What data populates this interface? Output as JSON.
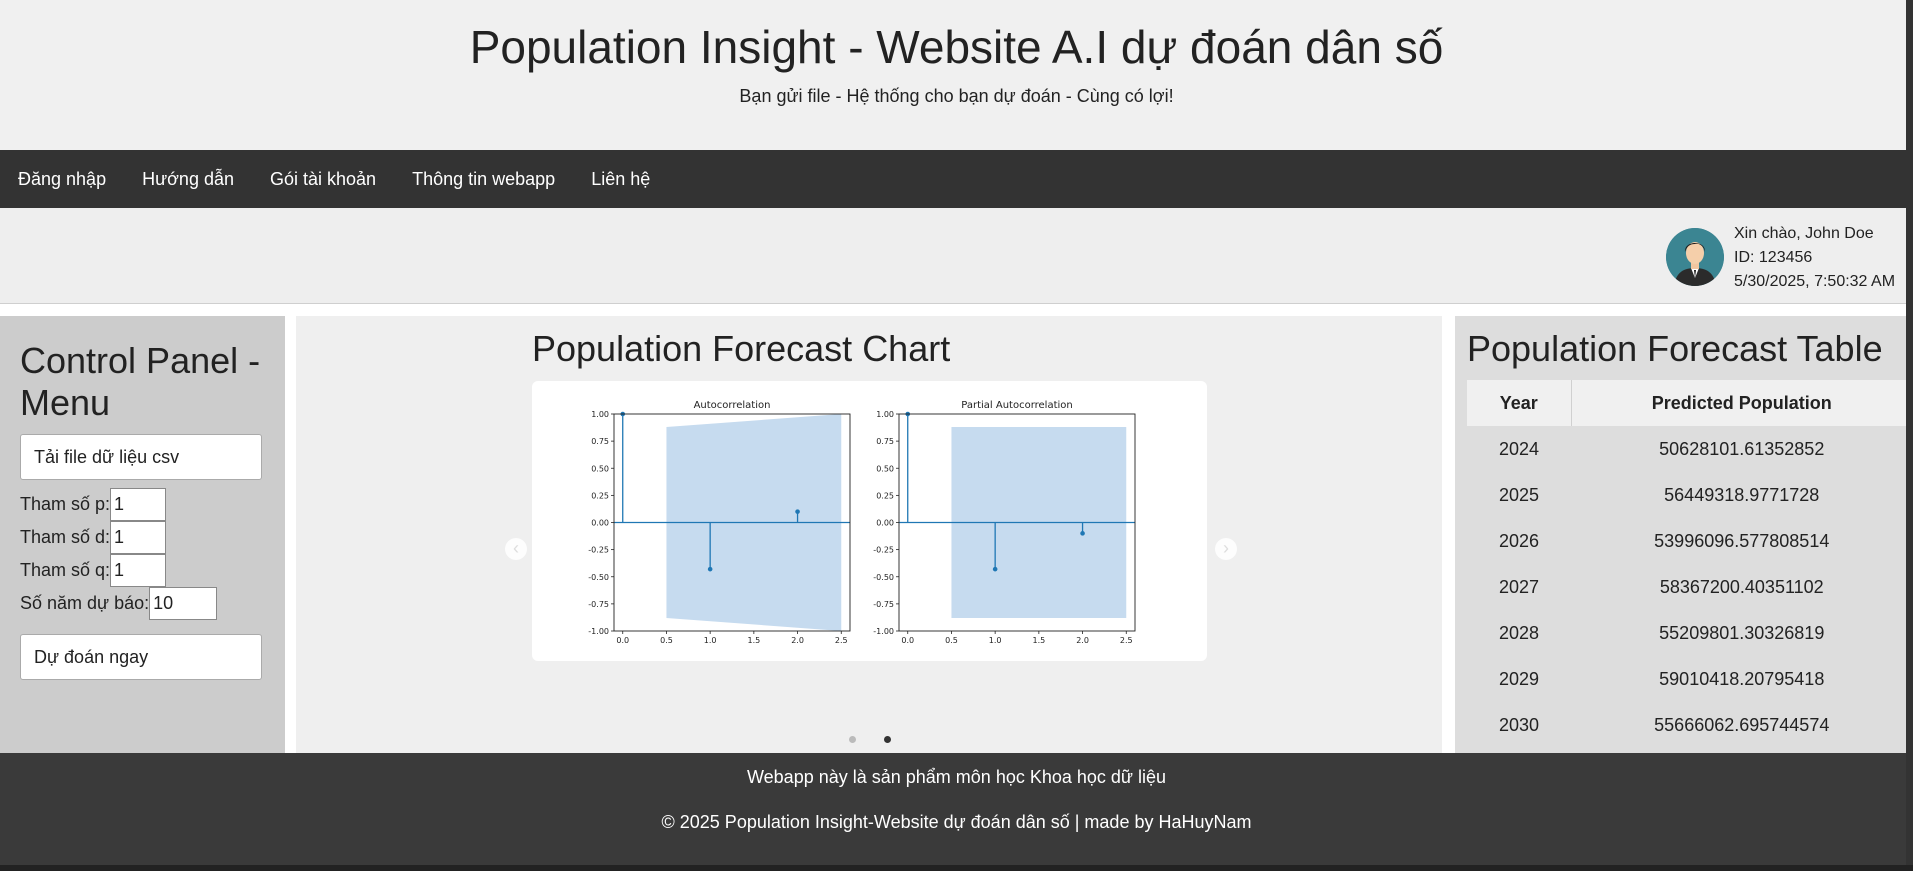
{
  "header": {
    "title": "Population Insight - Website A.I dự đoán dân số",
    "subtitle": "Bạn gửi file - Hệ thống cho bạn dự đoán - Cùng có lợi!"
  },
  "nav": {
    "items": [
      "Đăng nhập",
      "Hướng dẫn",
      "Gói tài khoản",
      "Thông tin webapp",
      "Liên hệ"
    ]
  },
  "user": {
    "greeting": "Xin chào, John Doe",
    "id": "ID: 123456",
    "datetime": "5/30/2025, 7:50:32 AM"
  },
  "control_panel": {
    "title": "Control Panel - Menu",
    "upload_label": "Tải file dữ liệu csv",
    "p_label": "Tham số p:",
    "p_value": "1",
    "d_label": "Tham số d:",
    "d_value": "1",
    "q_label": "Tham số q:",
    "q_value": "1",
    "years_label": "Số năm dự báo:",
    "years_value": "10",
    "predict_label": "Dự đoán ngay"
  },
  "chart_section": {
    "title": "Population Forecast Chart",
    "prev_icon": "‹",
    "next_icon": "›",
    "active_slide": 2,
    "slide_count": 2
  },
  "chart_data": [
    {
      "type": "stem",
      "title": "Autocorrelation",
      "xlim": [
        -0.1,
        2.6
      ],
      "ylim": [
        -1.0,
        1.0
      ],
      "xticks": [
        "0.0",
        "0.5",
        "1.0",
        "1.5",
        "2.0",
        "2.5"
      ],
      "yticks": [
        "1.00",
        "0.75",
        "0.50",
        "0.25",
        "0.00",
        "-0.25",
        "-0.50",
        "-0.75",
        "-1.00"
      ],
      "x": [
        0,
        1,
        2
      ],
      "values": [
        1.0,
        -0.43,
        0.1
      ],
      "confidence_band": {
        "x": [
          0.5,
          2.5
        ],
        "upper": [
          0.88,
          1.0
        ],
        "lower": [
          -0.88,
          -1.0
        ]
      },
      "colors": {
        "stem": "#1f77b4",
        "band": "#c6dbef"
      }
    },
    {
      "type": "stem",
      "title": "Partial Autocorrelation",
      "xlim": [
        -0.1,
        2.6
      ],
      "ylim": [
        -1.0,
        1.0
      ],
      "xticks": [
        "0.0",
        "0.5",
        "1.0",
        "1.5",
        "2.0",
        "2.5"
      ],
      "yticks": [
        "1.00",
        "0.75",
        "0.50",
        "0.25",
        "0.00",
        "-0.25",
        "-0.50",
        "-0.75",
        "-1.00"
      ],
      "x": [
        0,
        1,
        2
      ],
      "values": [
        1.0,
        -0.43,
        -0.1
      ],
      "confidence_band": {
        "x": [
          0.5,
          2.5
        ],
        "upper": [
          0.88,
          0.88
        ],
        "lower": [
          -0.88,
          -0.88
        ]
      },
      "colors": {
        "stem": "#1f77b4",
        "band": "#c6dbef"
      }
    }
  ],
  "table_section": {
    "title": "Population Forecast Table",
    "headers": [
      "Year",
      "Predicted Population"
    ],
    "rows": [
      [
        "2024",
        "50628101.61352852"
      ],
      [
        "2025",
        "56449318.9771728"
      ],
      [
        "2026",
        "53996096.577808514"
      ],
      [
        "2027",
        "58367200.40351102"
      ],
      [
        "2028",
        "55209801.30326819"
      ],
      [
        "2029",
        "59010418.20795418"
      ],
      [
        "2030",
        "55666062.695744574"
      ]
    ]
  },
  "footer": {
    "line1": "Webapp này là sản phẩm môn học Khoa học dữ liệu",
    "line2": "© 2025 Population Insight-Website dự đoán dân số | made by HaHuyNam"
  }
}
